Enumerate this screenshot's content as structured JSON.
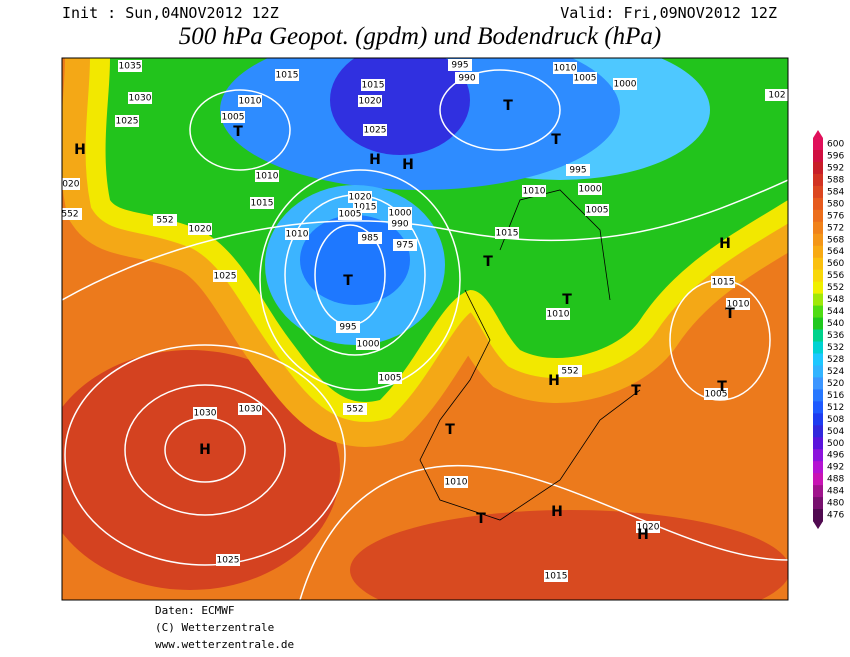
{
  "header": {
    "init": "Init : Sun,04NOV2012 12Z",
    "valid": "Valid: Fri,09NOV2012 12Z",
    "title": "500 hPa Geopot. (gpdm) und Bodendruck (hPa)"
  },
  "scale": {
    "ticks": [
      600,
      596,
      592,
      588,
      584,
      580,
      576,
      572,
      568,
      564,
      560,
      556,
      552,
      548,
      544,
      540,
      536,
      532,
      528,
      524,
      520,
      516,
      512,
      508,
      504,
      500,
      496,
      492,
      488,
      484,
      480,
      476
    ],
    "colors": [
      "#e0105a",
      "#d01040",
      "#c81e28",
      "#d23222",
      "#dc4620",
      "#e65a1e",
      "#ec6e1c",
      "#f0821a",
      "#f49618",
      "#f8aa14",
      "#fac010",
      "#f8d80a",
      "#f0f000",
      "#a0e80a",
      "#50dc14",
      "#20c81e",
      "#00d28c",
      "#00d2d2",
      "#1ec8ff",
      "#32b4ff",
      "#3c96ff",
      "#2878ff",
      "#1e5aff",
      "#1e3cf0",
      "#3228dc",
      "#5a14dc",
      "#8c14dc",
      "#b414d2",
      "#c814b4",
      "#a0148c",
      "#78106e",
      "#500a50"
    ]
  },
  "map": {
    "isobar_labels": [
      1035,
      1015,
      1015,
      995,
      1010,
      1005,
      990,
      1000,
      102,
      1030,
      1010,
      1020,
      1025,
      1005,
      1025,
      1010,
      1020,
      1015,
      1020,
      1015,
      1005,
      1000,
      990,
      1010,
      995,
      1000,
      1005,
      552,
      552,
      1020,
      1010,
      985,
      975,
      1015,
      1025,
      1015,
      1010,
      1010,
      995,
      1000,
      1005,
      552,
      1005,
      552,
      1030,
      1030,
      1010,
      1020,
      1025,
      1015
    ],
    "markers": [
      "H",
      "T",
      "H",
      "H",
      "T",
      "T",
      "T",
      "T",
      "T",
      "H",
      "T",
      "H",
      "T",
      "T",
      "T",
      "H",
      "T",
      "H",
      "H"
    ]
  },
  "footer": {
    "lines": [
      "Daten: ECMWF",
      "(C) Wetterzentrale",
      "www.wetterzentrale.de"
    ]
  }
}
